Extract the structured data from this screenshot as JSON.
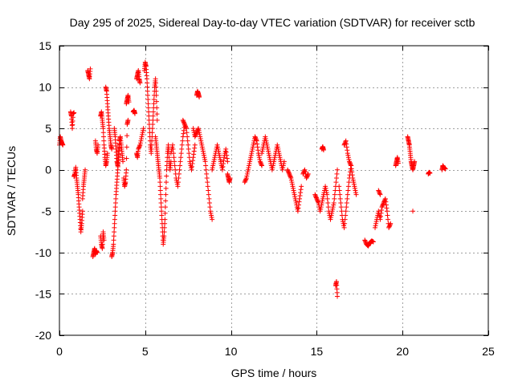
{
  "chart_data": {
    "type": "scatter",
    "title": "Day 295 of 2025, Sidereal Day-to-day VTEC variation (SDTVAR) for receiver sctb",
    "xlabel": "GPS time / hours",
    "ylabel": "SDTVAR / TECUs",
    "xlim": [
      0,
      25
    ],
    "ylim": [
      -20,
      15
    ],
    "xticks": [
      0,
      5,
      10,
      15,
      20,
      25
    ],
    "yticks": [
      -20,
      -15,
      -10,
      -5,
      0,
      5,
      10,
      15
    ],
    "grid": true,
    "marker": "+",
    "color": "#ff0000",
    "segments": [
      {
        "x": [
          0.0,
          0.05,
          0.1,
          0.15,
          0.2
        ],
        "y": [
          3.0,
          4.0,
          3.5,
          3.2,
          3.0
        ]
      },
      {
        "x": [
          0.65,
          0.7,
          0.75,
          0.8,
          0.85
        ],
        "y": [
          7.0,
          6.5,
          5.0,
          6.8,
          6.9
        ]
      },
      {
        "x": [
          0.85,
          0.9,
          0.95,
          1.0,
          1.05,
          1.1,
          1.15,
          1.2,
          1.25,
          1.3,
          1.35
        ],
        "y": [
          -0.8,
          -0.5,
          0.3,
          -1.0,
          -2.0,
          -3.0,
          -4.5,
          -6.0,
          -7.5,
          -6.5,
          -5.0
        ]
      },
      {
        "x": [
          1.35,
          1.4,
          1.45,
          1.5
        ],
        "y": [
          -3.5,
          -2.0,
          -1.0,
          0.0
        ]
      },
      {
        "x": [
          1.65,
          1.7,
          1.75,
          1.8
        ],
        "y": [
          12.0,
          11.5,
          11.0,
          12.2
        ]
      },
      {
        "x": [
          1.95,
          2.0,
          2.05,
          2.1,
          2.15,
          2.2
        ],
        "y": [
          -10.5,
          -10.0,
          -9.5,
          -10.2,
          -9.8,
          -10.0
        ]
      },
      {
        "x": [
          2.1,
          2.15,
          2.2,
          2.25
        ],
        "y": [
          3.5,
          2.5,
          2.0,
          3.0
        ]
      },
      {
        "x": [
          2.4,
          2.45,
          2.5,
          2.55,
          2.6
        ],
        "y": [
          -8.0,
          -9.0,
          -9.5,
          -7.5,
          -8.5
        ]
      },
      {
        "x": [
          2.4,
          2.45,
          2.5,
          2.55,
          2.6,
          2.65,
          2.7,
          2.75,
          2.8
        ],
        "y": [
          6.5,
          7.0,
          6.0,
          5.0,
          3.0,
          1.5,
          0.5,
          1.0,
          2.0
        ]
      },
      {
        "x": [
          2.7,
          2.75,
          2.8,
          2.85,
          2.9,
          2.95,
          3.0,
          3.05
        ],
        "y": [
          10.0,
          9.5,
          8.0,
          6.5,
          5.0,
          4.0,
          3.0,
          2.5
        ]
      },
      {
        "x": [
          3.05,
          3.1,
          3.15,
          3.2,
          3.25,
          3.3,
          3.35,
          3.4,
          3.45,
          3.5
        ],
        "y": [
          -10.5,
          -10.0,
          -9.0,
          -7.0,
          -5.0,
          -3.0,
          -1.5,
          0.0,
          1.5,
          3.0
        ]
      },
      {
        "x": [
          3.2,
          3.25,
          3.3,
          3.35,
          3.4,
          3.45,
          3.5,
          3.55,
          3.6,
          3.65,
          3.7
        ],
        "y": [
          5.0,
          4.0,
          2.5,
          1.0,
          0.5,
          2.0,
          3.5,
          4.0,
          3.0,
          2.0,
          1.0
        ]
      },
      {
        "x": [
          3.75,
          3.8,
          3.85,
          3.9,
          3.95,
          4.0
        ],
        "y": [
          -1.0,
          -2.0,
          -1.5,
          0.0,
          5.5,
          6.0
        ]
      },
      {
        "x": [
          3.9,
          3.95,
          4.0,
          4.05
        ],
        "y": [
          8.0,
          8.5,
          9.0,
          8.2
        ]
      },
      {
        "x": [
          4.3,
          4.35,
          4.4
        ],
        "y": [
          7.0,
          7.2,
          6.8
        ]
      },
      {
        "x": [
          4.5,
          4.55,
          4.6,
          4.65,
          4.7
        ],
        "y": [
          11.0,
          11.5,
          12.0,
          11.0,
          10.5
        ]
      },
      {
        "x": [
          4.5,
          4.55,
          4.6,
          4.7,
          4.8,
          4.9
        ],
        "y": [
          2.0,
          1.5,
          2.5,
          3.0,
          4.0,
          5.0
        ]
      },
      {
        "x": [
          4.95,
          5.0,
          5.05,
          5.1,
          5.15,
          5.2,
          5.25,
          5.3,
          5.35,
          5.4,
          5.45,
          5.5,
          5.55,
          5.6,
          5.65,
          5.7
        ],
        "y": [
          12.0,
          13.0,
          12.5,
          11.0,
          9.0,
          7.0,
          5.0,
          3.0,
          2.0,
          4.0,
          6.0,
          8.0,
          10.0,
          11.0,
          9.0,
          6.0
        ]
      },
      {
        "x": [
          5.6,
          5.65,
          5.7,
          5.75,
          5.8,
          5.85,
          5.9,
          5.95,
          6.0,
          6.05,
          6.1,
          6.15,
          6.2,
          6.25,
          6.3,
          6.35,
          6.4,
          6.45,
          6.5
        ],
        "y": [
          4.0,
          3.0,
          2.0,
          1.0,
          0.0,
          -1.0,
          -3.0,
          -5.0,
          -7.0,
          -9.0,
          -8.0,
          -6.0,
          -3.0,
          0.0,
          2.0,
          3.0,
          1.0,
          0.0,
          1.0
        ]
      },
      {
        "x": [
          6.5,
          6.6,
          6.7,
          6.8,
          6.9,
          7.0,
          7.1,
          7.2,
          7.3
        ],
        "y": [
          2.0,
          3.0,
          1.0,
          -1.0,
          -2.0,
          0.0,
          2.0,
          4.0,
          5.5
        ]
      },
      {
        "x": [
          7.2,
          7.3,
          7.4,
          7.5,
          7.6,
          7.7,
          7.8,
          7.9
        ],
        "y": [
          6.0,
          5.5,
          5.0,
          3.0,
          1.0,
          0.0,
          1.5,
          3.0
        ]
      },
      {
        "x": [
          7.8,
          7.9,
          8.0,
          8.1,
          8.2,
          8.3,
          8.4,
          8.5,
          8.6,
          8.7,
          8.8,
          8.9
        ],
        "y": [
          5.0,
          4.0,
          4.5,
          5.0,
          4.0,
          3.0,
          2.0,
          1.0,
          -1.0,
          -3.0,
          -5.0,
          -6.0
        ]
      },
      {
        "x": [
          8.0,
          8.05,
          8.1,
          8.15
        ],
        "y": [
          9.0,
          9.5,
          9.2,
          8.8
        ]
      },
      {
        "x": [
          8.9,
          9.0,
          9.1,
          9.2,
          9.3,
          9.4,
          9.5,
          9.6,
          9.7,
          9.8
        ],
        "y": [
          0.0,
          1.0,
          2.0,
          3.0,
          2.0,
          1.0,
          0.0,
          1.5,
          2.5,
          1.0
        ]
      },
      {
        "x": [
          9.8,
          9.85,
          9.9,
          9.95
        ],
        "y": [
          -0.5,
          -1.0,
          -1.5,
          -1.0
        ]
      },
      {
        "x": [
          10.8,
          10.9,
          11.0,
          11.1,
          11.2,
          11.3,
          11.4,
          11.5,
          11.6,
          11.7,
          11.8
        ],
        "y": [
          -1.5,
          -1.0,
          0.0,
          1.0,
          2.0,
          3.0,
          4.0,
          3.5,
          2.0,
          1.0,
          0.5
        ]
      },
      {
        "x": [
          11.8,
          11.9,
          12.0,
          12.1,
          12.2,
          12.3,
          12.4,
          12.5,
          12.6,
          12.7,
          12.8,
          12.9,
          13.0,
          13.1
        ],
        "y": [
          2.0,
          3.0,
          4.0,
          3.0,
          2.0,
          1.0,
          0.0,
          1.0,
          2.0,
          3.0,
          2.0,
          1.0,
          0.0,
          1.0
        ]
      },
      {
        "x": [
          13.3,
          13.4,
          13.5,
          13.6,
          13.7,
          13.8,
          13.9,
          14.0,
          14.1
        ],
        "y": [
          0.0,
          -0.5,
          -1.0,
          -2.0,
          -3.0,
          -4.0,
          -5.0,
          -3.5,
          -2.0
        ]
      },
      {
        "x": [
          14.2,
          14.3,
          14.4,
          14.5
        ],
        "y": [
          -0.5,
          0.0,
          -1.0,
          -0.5
        ]
      },
      {
        "x": [
          14.9,
          15.0,
          15.1,
          15.2,
          15.3,
          15.4,
          15.5,
          15.6,
          15.7,
          15.8,
          15.9,
          16.0,
          16.1,
          16.2
        ],
        "y": [
          -3.0,
          -3.5,
          -4.0,
          -5.0,
          -4.0,
          -3.0,
          -2.0,
          -3.0,
          -5.0,
          -6.0,
          -5.0,
          -4.0,
          -2.0,
          0.0
        ]
      },
      {
        "x": [
          15.3,
          15.35,
          15.4
        ],
        "y": [
          2.5,
          2.8,
          2.4
        ]
      },
      {
        "x": [
          16.1,
          16.15,
          16.2
        ],
        "y": [
          -14.0,
          -13.5,
          -15.3
        ]
      },
      {
        "x": [
          16.3,
          16.4,
          16.5,
          16.6,
          16.7,
          16.8,
          16.9,
          17.0,
          17.1,
          17.2,
          17.3
        ],
        "y": [
          -2.0,
          -4.0,
          -6.0,
          -7.0,
          -5.0,
          -3.0,
          -1.0,
          0.5,
          -1.0,
          -2.0,
          -3.0
        ]
      },
      {
        "x": [
          16.6,
          16.7,
          16.8,
          16.9,
          17.0
        ],
        "y": [
          3.0,
          3.5,
          2.0,
          1.0,
          0.5
        ]
      },
      {
        "x": [
          17.8,
          17.9,
          18.0,
          18.1,
          18.2,
          18.3
        ],
        "y": [
          -8.5,
          -9.0,
          -9.2,
          -8.8,
          -8.6,
          -8.7
        ]
      },
      {
        "x": [
          18.4,
          18.5,
          18.6,
          18.7,
          18.8,
          18.9,
          19.0,
          19.1,
          19.2,
          19.3
        ],
        "y": [
          -7.0,
          -6.0,
          -5.0,
          -6.0,
          -4.5,
          -4.0,
          -3.5,
          -5.0,
          -7.0,
          -6.5
        ]
      },
      {
        "x": [
          18.6,
          18.7
        ],
        "y": [
          -2.5,
          -3.0
        ]
      },
      {
        "x": [
          19.6,
          19.65,
          19.7,
          19.75
        ],
        "y": [
          0.5,
          1.0,
          1.5,
          0.8
        ]
      },
      {
        "x": [
          20.3,
          20.35,
          20.4,
          20.45,
          20.5,
          20.55,
          20.6,
          20.65,
          20.7
        ],
        "y": [
          4.0,
          3.5,
          3.0,
          2.0,
          1.0,
          0.5,
          0.0,
          0.5,
          1.0
        ]
      },
      {
        "x": [
          20.6
        ],
        "y": [
          -5.0
        ]
      },
      {
        "x": [
          21.5,
          21.55,
          21.6
        ],
        "y": [
          -0.5,
          -0.3,
          -0.4
        ]
      },
      {
        "x": [
          22.3,
          22.35,
          22.4,
          22.45,
          22.5
        ],
        "y": [
          0.0,
          0.5,
          0.3,
          0.2,
          0.1
        ]
      }
    ]
  }
}
